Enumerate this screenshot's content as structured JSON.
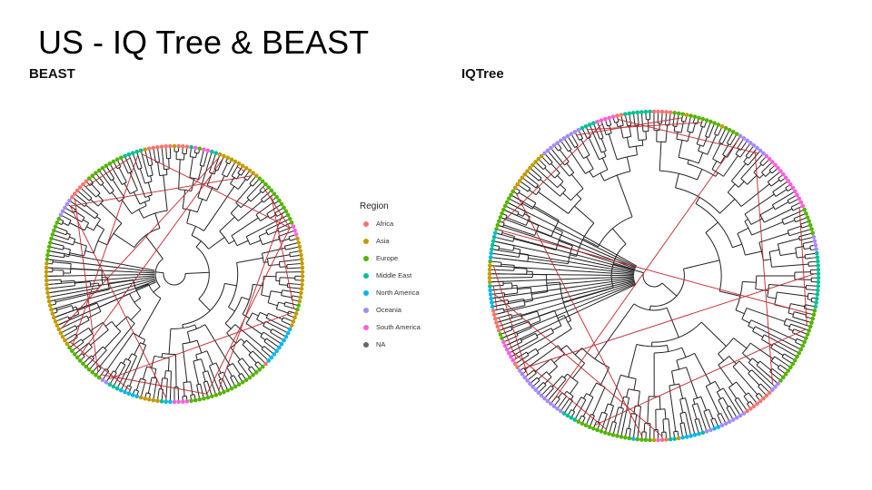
{
  "slide": {
    "title": "US - IQ Tree & BEAST"
  },
  "panels": [
    {
      "id": "beast",
      "title": "BEAST",
      "tip_count": 190
    },
    {
      "id": "iqtree",
      "title": "IQTree",
      "tip_count": 250
    }
  ],
  "legend": {
    "title": "Region",
    "items": [
      {
        "label": "Africa",
        "color": "#F8766D"
      },
      {
        "label": "Asia",
        "color": "#C49A00"
      },
      {
        "label": "Europe",
        "color": "#53B400"
      },
      {
        "label": "Middle East",
        "color": "#00C094"
      },
      {
        "label": "North America",
        "color": "#00B6EB"
      },
      {
        "label": "Oceania",
        "color": "#A58AFF"
      },
      {
        "label": "South America",
        "color": "#FB61D7"
      },
      {
        "label": "NA",
        "color": "#666666"
      }
    ]
  },
  "style": {
    "branch_color": "#222222",
    "link_color": "#C0242A"
  }
}
